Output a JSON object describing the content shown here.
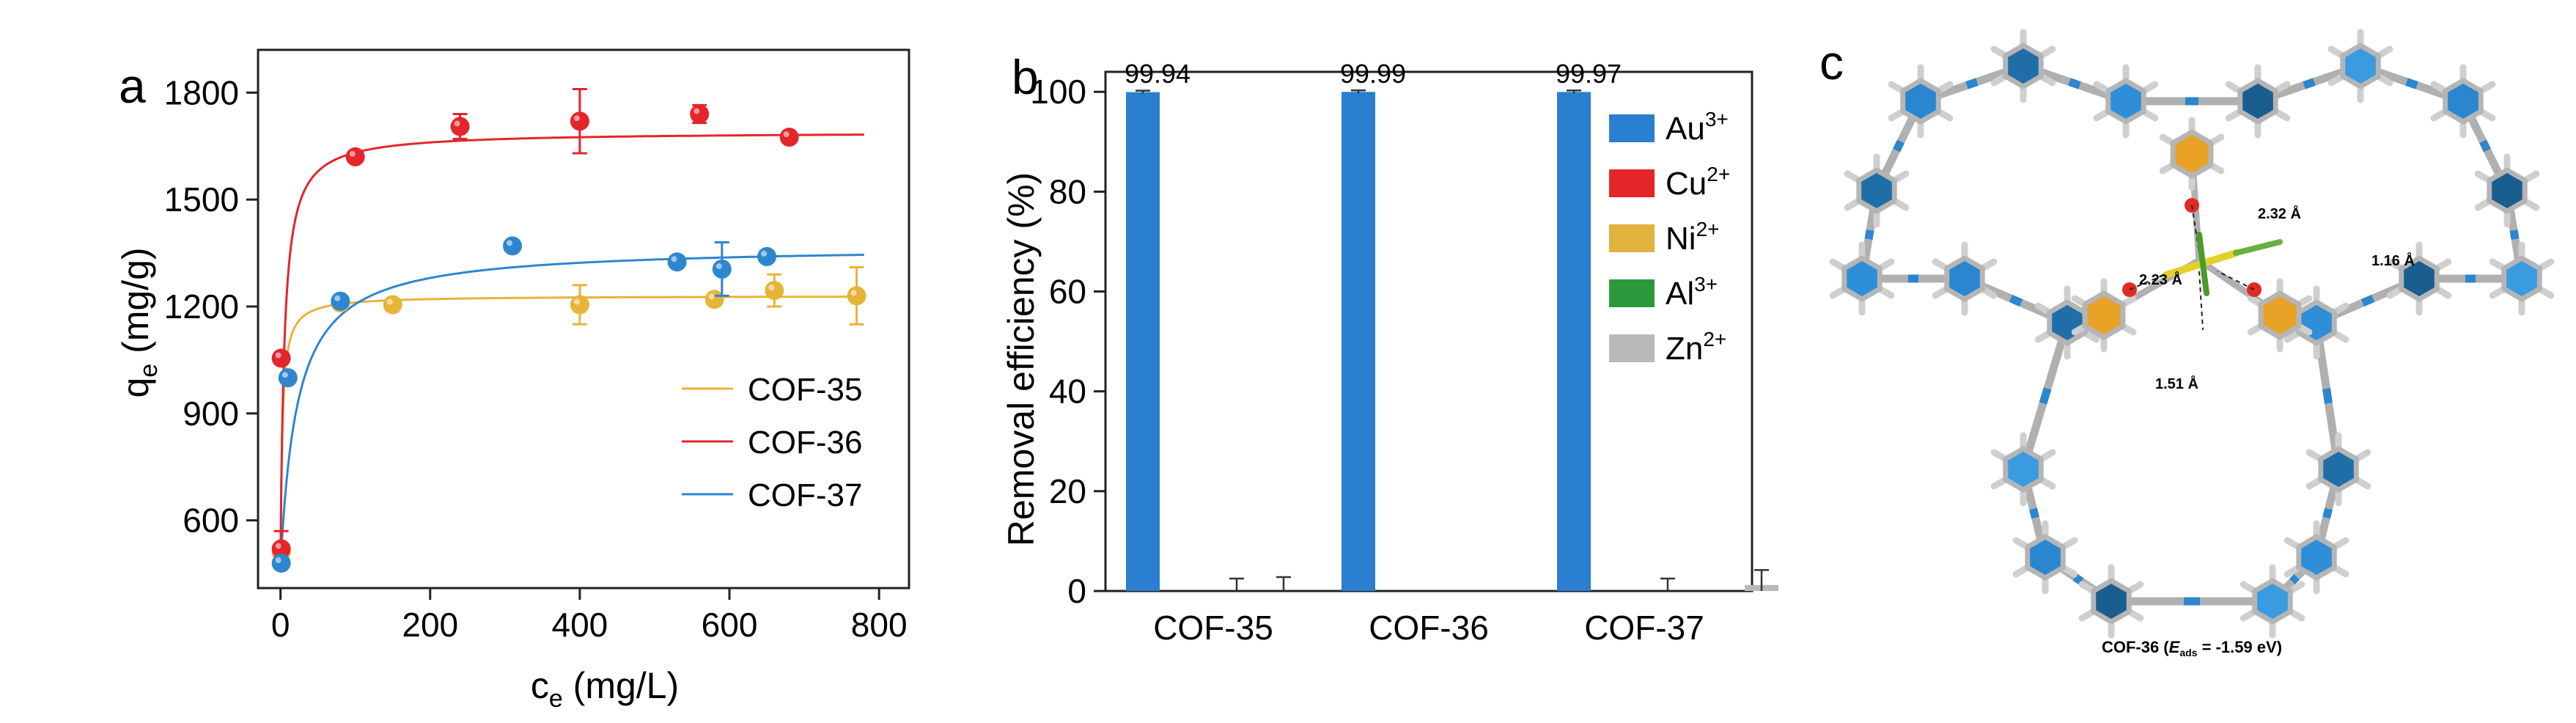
{
  "panels": {
    "a": "a",
    "b": "b",
    "c": "c"
  },
  "chart_data": [
    {
      "panel": "a",
      "type": "scatter",
      "xlabel": "c",
      "xlabel_sub": "e",
      "xlabel_unit": " (mg/L)",
      "ylabel": "q",
      "ylabel_sub": "e",
      "ylabel_unit": " (mg/g)",
      "xlim": [
        -30,
        840
      ],
      "ylim": [
        410,
        1920
      ],
      "xticks": [
        0,
        200,
        400,
        600,
        800
      ],
      "yticks": [
        600,
        900,
        1200,
        1500,
        1800
      ],
      "legend_position": "bottom-right",
      "series": [
        {
          "name": "COF-35",
          "color": "#e7b43a",
          "fit": {
            "qmax": 1230,
            "K": 0.4
          },
          "points": [
            {
              "x": 1,
              "y": 510,
              "err": 0
            },
            {
              "x": 10,
              "y": 1000,
              "err": 0
            },
            {
              "x": 80,
              "y": 1210,
              "err": 0
            },
            {
              "x": 150,
              "y": 1205,
              "err": 0
            },
            {
              "x": 400,
              "y": 1205,
              "err": 55
            },
            {
              "x": 580,
              "y": 1220,
              "err": 0
            },
            {
              "x": 660,
              "y": 1245,
              "err": 45
            },
            {
              "x": 770,
              "y": 1230,
              "err": 80
            }
          ]
        },
        {
          "name": "COF-36",
          "color": "#e4252b",
          "fit": {
            "qmax": 1690,
            "K": 0.2
          },
          "points": [
            {
              "x": 1,
              "y": 1055,
              "err": 0
            },
            {
              "x": 1,
              "y": 520,
              "err": 50
            },
            {
              "x": 100,
              "y": 1620,
              "err": 0
            },
            {
              "x": 240,
              "y": 1705,
              "err": 35
            },
            {
              "x": 400,
              "y": 1720,
              "err": 90
            },
            {
              "x": 560,
              "y": 1740,
              "err": 25
            },
            {
              "x": 680,
              "y": 1675,
              "err": 0
            }
          ]
        },
        {
          "name": "COF-37",
          "color": "#2e86cf",
          "fit": {
            "qmax": 1370,
            "K": 0.045
          },
          "points": [
            {
              "x": 1,
              "y": 480,
              "err": 0
            },
            {
              "x": 10,
              "y": 1000,
              "err": 0
            },
            {
              "x": 80,
              "y": 1215,
              "err": 0
            },
            {
              "x": 310,
              "y": 1370,
              "err": 0
            },
            {
              "x": 530,
              "y": 1325,
              "err": 0
            },
            {
              "x": 590,
              "y": 1305,
              "err": 75
            },
            {
              "x": 650,
              "y": 1340,
              "err": 0
            }
          ]
        }
      ]
    },
    {
      "panel": "b",
      "type": "bar",
      "ylabel": "Removal efficiency (%)",
      "ylim": [
        0,
        104
      ],
      "yticks": [
        0,
        20,
        40,
        60,
        80,
        100
      ],
      "categories": [
        "COF-35",
        "COF-36",
        "COF-37"
      ],
      "legend_position": "top-right",
      "series": [
        {
          "name": "Au",
          "sup": "3+",
          "color": "#2a7fd0",
          "values": [
            99.94,
            99.99,
            99.97
          ],
          "errors": [
            0.3,
            0.3,
            0.3
          ]
        },
        {
          "name": "Cu",
          "sup": "2+",
          "color": "#e4252b",
          "values": [
            0,
            0,
            0
          ],
          "errors": [
            0,
            0,
            0
          ]
        },
        {
          "name": "Ni",
          "sup": "2+",
          "color": "#e0b33e",
          "values": [
            0,
            0,
            0
          ],
          "errors": [
            2.5,
            0,
            2.5
          ]
        },
        {
          "name": "Al",
          "sup": "3+",
          "color": "#2c9a3c",
          "values": [
            0,
            0,
            0
          ],
          "errors": [
            2.8,
            0,
            0
          ]
        },
        {
          "name": "Zn",
          "sup": "2+",
          "color": "#b9b9b9",
          "values": [
            0,
            0,
            1.2
          ],
          "errors": [
            0,
            0,
            3
          ]
        }
      ],
      "data_labels": [
        "99.94",
        "99.99",
        "99.97"
      ]
    }
  ],
  "structure": {
    "caption_prefix": "COF-36 (",
    "caption_var": "E",
    "caption_sub": "ads",
    "caption_suffix": " = -1.59 eV)",
    "distances": [
      "2.32 Å",
      "2.23 Å",
      "1.16 Å",
      "1.51 Å"
    ]
  }
}
